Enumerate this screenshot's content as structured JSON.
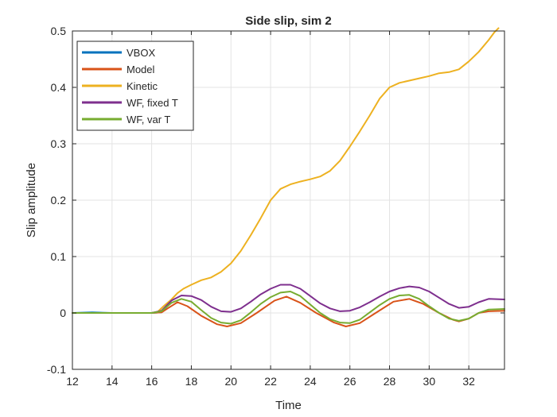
{
  "chart_data": {
    "type": "line",
    "title": "Side slip, sim 2",
    "xlabel": "Time",
    "ylabel": "Slip amplitude",
    "xlim": [
      12,
      33.8
    ],
    "ylim": [
      -0.1,
      0.5
    ],
    "xticks": [
      12,
      14,
      16,
      18,
      20,
      22,
      24,
      26,
      28,
      30,
      32
    ],
    "yticks": [
      -0.1,
      0,
      0.1,
      0.2,
      0.3,
      0.4,
      0.5
    ],
    "xtick_labels": [
      "12",
      "14",
      "16",
      "18",
      "20",
      "22",
      "24",
      "26",
      "28",
      "30",
      "32"
    ],
    "ytick_labels": [
      "-0.1",
      "0",
      "0.1",
      "0.2",
      "0.3",
      "0.4",
      "0.5"
    ],
    "grid": true,
    "legend_position": "top-left",
    "series": [
      {
        "name": "VBOX",
        "color": "#0072BD",
        "points": [
          [
            12,
            0
          ],
          [
            13,
            0.001
          ],
          [
            14,
            0
          ],
          [
            15,
            0
          ],
          [
            16,
            0
          ],
          [
            16.5,
            0.001
          ]
        ]
      },
      {
        "name": "Model",
        "color": "#D95319",
        "points": [
          [
            12,
            0
          ],
          [
            13,
            0
          ],
          [
            14,
            0
          ],
          [
            15,
            0
          ],
          [
            16,
            0
          ],
          [
            16.5,
            0.001
          ],
          [
            16.8,
            0.008
          ],
          [
            17.3,
            0.019
          ],
          [
            17.8,
            0.012
          ],
          [
            18.5,
            -0.005
          ],
          [
            19.3,
            -0.02
          ],
          [
            19.8,
            -0.024
          ],
          [
            20.5,
            -0.018
          ],
          [
            21.3,
            0
          ],
          [
            22.2,
            0.022
          ],
          [
            22.8,
            0.029
          ],
          [
            23.5,
            0.018
          ],
          [
            24.3,
            0
          ],
          [
            25.2,
            -0.017
          ],
          [
            25.8,
            -0.024
          ],
          [
            26.5,
            -0.018
          ],
          [
            27.3,
            0
          ],
          [
            28.2,
            0.02
          ],
          [
            29,
            0.025
          ],
          [
            29.7,
            0.016
          ],
          [
            30.5,
            0
          ],
          [
            31.2,
            -0.012
          ],
          [
            31.5,
            -0.015
          ],
          [
            32,
            -0.01
          ],
          [
            32.5,
            0
          ],
          [
            33,
            0.003
          ],
          [
            33.8,
            0.004
          ]
        ]
      },
      {
        "name": "Kinetic",
        "color": "#EDB120",
        "points": [
          [
            12,
            0
          ],
          [
            14,
            0
          ],
          [
            15,
            0
          ],
          [
            16,
            0
          ],
          [
            16.3,
            0.002
          ],
          [
            16.6,
            0.012
          ],
          [
            17,
            0.024
          ],
          [
            17.3,
            0.035
          ],
          [
            17.6,
            0.043
          ],
          [
            18,
            0.05
          ],
          [
            18.5,
            0.058
          ],
          [
            19,
            0.063
          ],
          [
            19.5,
            0.073
          ],
          [
            20,
            0.088
          ],
          [
            20.5,
            0.11
          ],
          [
            21,
            0.138
          ],
          [
            21.5,
            0.168
          ],
          [
            22,
            0.2
          ],
          [
            22.5,
            0.22
          ],
          [
            23,
            0.228
          ],
          [
            23.5,
            0.233
          ],
          [
            24,
            0.237
          ],
          [
            24.5,
            0.242
          ],
          [
            25,
            0.252
          ],
          [
            25.5,
            0.27
          ],
          [
            26,
            0.295
          ],
          [
            26.5,
            0.322
          ],
          [
            27,
            0.35
          ],
          [
            27.5,
            0.38
          ],
          [
            28,
            0.4
          ],
          [
            28.5,
            0.408
          ],
          [
            29,
            0.412
          ],
          [
            29.5,
            0.416
          ],
          [
            30,
            0.42
          ],
          [
            30.5,
            0.425
          ],
          [
            31,
            0.427
          ],
          [
            31.5,
            0.432
          ],
          [
            32,
            0.446
          ],
          [
            32.5,
            0.463
          ],
          [
            33,
            0.484
          ],
          [
            33.3,
            0.498
          ],
          [
            33.5,
            0.505
          ]
        ]
      },
      {
        "name": "WF, fixed T",
        "color": "#7E2F8E",
        "points": [
          [
            12,
            0
          ],
          [
            14,
            0
          ],
          [
            15,
            0
          ],
          [
            16,
            0
          ],
          [
            16.5,
            0.004
          ],
          [
            17,
            0.022
          ],
          [
            17.5,
            0.031
          ],
          [
            18,
            0.03
          ],
          [
            18.5,
            0.023
          ],
          [
            19,
            0.011
          ],
          [
            19.5,
            0.003
          ],
          [
            20,
            0.002
          ],
          [
            20.5,
            0.008
          ],
          [
            21,
            0.02
          ],
          [
            21.5,
            0.033
          ],
          [
            22,
            0.043
          ],
          [
            22.5,
            0.05
          ],
          [
            23,
            0.05
          ],
          [
            23.5,
            0.043
          ],
          [
            24,
            0.03
          ],
          [
            24.5,
            0.017
          ],
          [
            25,
            0.008
          ],
          [
            25.5,
            0.003
          ],
          [
            26,
            0.004
          ],
          [
            26.5,
            0.01
          ],
          [
            27,
            0.019
          ],
          [
            27.5,
            0.029
          ],
          [
            28,
            0.038
          ],
          [
            28.5,
            0.044
          ],
          [
            29,
            0.047
          ],
          [
            29.5,
            0.045
          ],
          [
            30,
            0.038
          ],
          [
            30.5,
            0.027
          ],
          [
            31,
            0.016
          ],
          [
            31.5,
            0.009
          ],
          [
            32,
            0.011
          ],
          [
            32.5,
            0.019
          ],
          [
            33,
            0.025
          ],
          [
            33.8,
            0.024
          ]
        ]
      },
      {
        "name": "WF, var T",
        "color": "#77AC30",
        "points": [
          [
            12,
            0
          ],
          [
            14,
            0
          ],
          [
            15,
            0
          ],
          [
            16,
            0
          ],
          [
            16.5,
            0.003
          ],
          [
            17,
            0.018
          ],
          [
            17.5,
            0.025
          ],
          [
            18,
            0.02
          ],
          [
            18.5,
            0.005
          ],
          [
            19,
            -0.009
          ],
          [
            19.5,
            -0.017
          ],
          [
            20,
            -0.019
          ],
          [
            20.5,
            -0.013
          ],
          [
            21,
            0.001
          ],
          [
            21.5,
            0.016
          ],
          [
            22,
            0.028
          ],
          [
            22.5,
            0.036
          ],
          [
            23,
            0.038
          ],
          [
            23.5,
            0.03
          ],
          [
            24,
            0.015
          ],
          [
            24.5,
            0
          ],
          [
            25,
            -0.011
          ],
          [
            25.5,
            -0.017
          ],
          [
            26,
            -0.018
          ],
          [
            26.5,
            -0.012
          ],
          [
            27,
            0.001
          ],
          [
            27.5,
            0.014
          ],
          [
            28,
            0.025
          ],
          [
            28.5,
            0.031
          ],
          [
            29,
            0.032
          ],
          [
            29.5,
            0.025
          ],
          [
            30,
            0.012
          ],
          [
            30.5,
            0
          ],
          [
            31,
            -0.01
          ],
          [
            31.5,
            -0.014
          ],
          [
            32,
            -0.01
          ],
          [
            32.5,
            0
          ],
          [
            33,
            0.006
          ],
          [
            33.8,
            0.007
          ]
        ]
      }
    ]
  }
}
